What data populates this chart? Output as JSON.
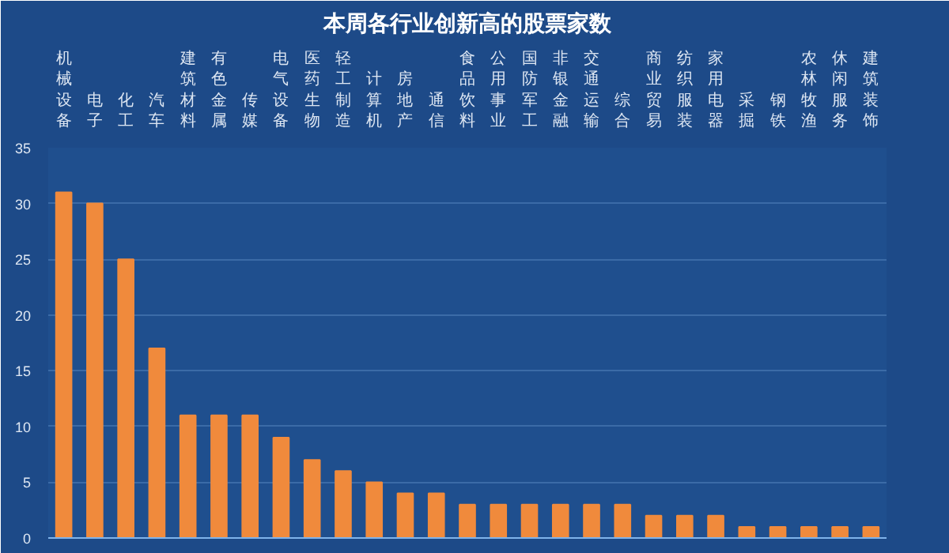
{
  "chart_data": {
    "type": "bar",
    "title": "本周各行业创新高的股票家数",
    "categories": [
      "机械设备",
      "电子",
      "化工",
      "汽车",
      "建筑材料",
      "有色金属",
      "传媒",
      "电气设备",
      "医药生物",
      "轻工制造",
      "计算机",
      "房地产",
      "通信",
      "食品饮料",
      "公用事业",
      "国防军工",
      "非银金融",
      "交通运输",
      "综合",
      "商业贸易",
      "纺织服装",
      "家用电器",
      "采掘",
      "钢铁",
      "农林牧渔",
      "休闲服务",
      "建筑装饰"
    ],
    "values": [
      31,
      30,
      25,
      17,
      11,
      11,
      11,
      9,
      7,
      6,
      5,
      4,
      4,
      3,
      3,
      3,
      3,
      3,
      3,
      2,
      2,
      2,
      1,
      1,
      1,
      1,
      1
    ],
    "color": "#f08a3c",
    "ylim": [
      0,
      35
    ],
    "yticks": [
      0,
      5,
      10,
      15,
      20,
      25,
      30,
      35
    ],
    "grid": "y"
  }
}
